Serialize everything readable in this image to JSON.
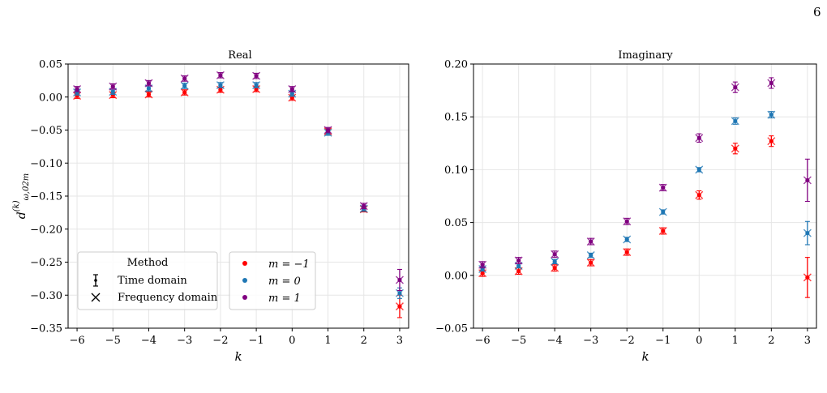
{
  "page": {
    "number": "6"
  },
  "legend": {
    "method_title": "Method",
    "method_items": [
      "Time domain",
      "Frequency domain"
    ],
    "m_items": [
      "m = −1",
      "m = 0",
      "m = 1"
    ]
  },
  "colors": {
    "m=-1": "#ff0000",
    "m=0": "#1f77b4",
    "m=1": "#800080"
  },
  "chart_data": [
    {
      "type": "scatter",
      "title": "Real",
      "xlabel": "k",
      "ylabel": "d(k) ω,02m",
      "x": [
        -6,
        -5,
        -4,
        -3,
        -2,
        -1,
        0,
        1,
        2,
        3
      ],
      "xlim": [
        -6.25,
        3.25
      ],
      "ylim": [
        -0.35,
        0.05
      ],
      "yticks": [
        0.05,
        0.0,
        -0.05,
        -0.1,
        -0.15,
        -0.2,
        -0.25,
        -0.3,
        -0.35
      ],
      "ytick_labels": [
        "0.05",
        "0.00",
        "−0.05",
        "−0.10",
        "−0.15",
        "−0.20",
        "−0.25",
        "−0.30",
        "−0.35"
      ],
      "grid": true,
      "legend_position": "lower-left",
      "series": [
        {
          "name": "m = −1",
          "color": "#ff0000",
          "values": [
            0.002,
            0.003,
            0.004,
            0.007,
            0.011,
            0.012,
            -0.001,
            -0.052,
            -0.17,
            -0.317
          ],
          "err": [
            0.004,
            0.004,
            0.004,
            0.004,
            0.004,
            0.004,
            0.004,
            0.004,
            0.004,
            0.017
          ]
        },
        {
          "name": "m = 0",
          "color": "#1f77b4",
          "values": [
            0.007,
            0.008,
            0.013,
            0.017,
            0.018,
            0.018,
            0.005,
            -0.054,
            -0.169,
            -0.297
          ],
          "err": [
            0.004,
            0.004,
            0.004,
            0.004,
            0.004,
            0.004,
            0.004,
            0.004,
            0.004,
            0.008
          ]
        },
        {
          "name": "m = 1",
          "color": "#800080",
          "values": [
            0.012,
            0.016,
            0.021,
            0.028,
            0.033,
            0.032,
            0.012,
            -0.05,
            -0.165,
            -0.277
          ],
          "err": [
            0.004,
            0.004,
            0.004,
            0.004,
            0.004,
            0.004,
            0.004,
            0.004,
            0.004,
            0.016
          ]
        }
      ]
    },
    {
      "type": "scatter",
      "title": "Imaginary",
      "xlabel": "k",
      "ylabel": "",
      "x": [
        -6,
        -5,
        -4,
        -3,
        -2,
        -1,
        0,
        1,
        2,
        3
      ],
      "xlim": [
        -6.25,
        3.25
      ],
      "ylim": [
        -0.05,
        0.2
      ],
      "yticks": [
        0.2,
        0.15,
        0.1,
        0.05,
        0.0,
        -0.05
      ],
      "ytick_labels": [
        "0.20",
        "0.15",
        "0.10",
        "0.05",
        "0.00",
        "−0.05"
      ],
      "grid": true,
      "series": [
        {
          "name": "m = −1",
          "color": "#ff0000",
          "values": [
            0.002,
            0.004,
            0.007,
            0.012,
            0.022,
            0.042,
            0.076,
            0.12,
            0.127,
            -0.002
          ],
          "err": [
            0.003,
            0.003,
            0.003,
            0.003,
            0.003,
            0.003,
            0.004,
            0.005,
            0.005,
            0.019
          ]
        },
        {
          "name": "m = 0",
          "color": "#1f77b4",
          "values": [
            0.006,
            0.009,
            0.013,
            0.019,
            0.034,
            0.06,
            0.1,
            0.146,
            0.152,
            0.04
          ],
          "err": [
            0.002,
            0.002,
            0.002,
            0.002,
            0.002,
            0.002,
            0.002,
            0.003,
            0.003,
            0.011
          ]
        },
        {
          "name": "m = 1",
          "color": "#800080",
          "values": [
            0.01,
            0.014,
            0.02,
            0.032,
            0.051,
            0.083,
            0.13,
            0.178,
            0.182,
            0.09
          ],
          "err": [
            0.003,
            0.003,
            0.003,
            0.003,
            0.003,
            0.003,
            0.004,
            0.005,
            0.005,
            0.02
          ]
        }
      ]
    }
  ]
}
